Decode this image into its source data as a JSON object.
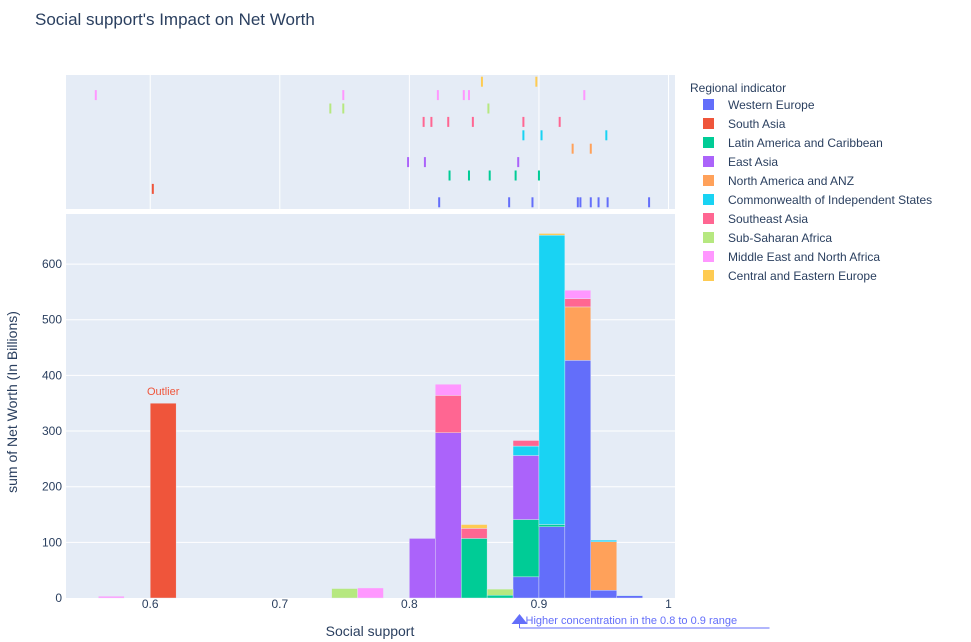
{
  "chart_data": {
    "type": "bar",
    "title": "Social support's Impact on Net Worth",
    "xlabel": "Social support",
    "ylabel": "sum of Net Worth (In Billions)",
    "xlim": [
      0.535,
      1.005
    ],
    "ylim": [
      0,
      690
    ],
    "barmode": "stack",
    "bin_width": 0.02,
    "x_ticks": [
      {
        "value": 0.6,
        "label": "0.6"
      },
      {
        "value": 0.7,
        "label": "0.7"
      },
      {
        "value": 0.8,
        "label": "0.8"
      },
      {
        "value": 0.9,
        "label": "0.9"
      },
      {
        "value": 1.0,
        "label": "1"
      }
    ],
    "y_ticks": [
      {
        "value": 0,
        "label": "0"
      },
      {
        "value": 100,
        "label": "100"
      },
      {
        "value": 200,
        "label": "200"
      },
      {
        "value": 300,
        "label": "300"
      },
      {
        "value": 400,
        "label": "400"
      },
      {
        "value": 500,
        "label": "500"
      },
      {
        "value": 600,
        "label": "600"
      }
    ],
    "legend_title": "Regional indicator",
    "legend_position": "right",
    "series": [
      {
        "name": "Western Europe",
        "color": "#636efa",
        "bars": [
          {
            "x": 0.89,
            "value": 38
          },
          {
            "x": 0.91,
            "value": 128
          },
          {
            "x": 0.93,
            "value": 427
          },
          {
            "x": 0.95,
            "value": 14
          },
          {
            "x": 0.97,
            "value": 4
          }
        ],
        "rug": [
          0.823,
          0.877,
          0.895,
          0.93,
          0.932,
          0.94,
          0.946,
          0.953,
          0.985
        ]
      },
      {
        "name": "South Asia",
        "color": "#ef553b",
        "bars": [
          {
            "x": 0.61,
            "value": 350
          }
        ],
        "rug": [
          0.602
        ]
      },
      {
        "name": "Latin America and Caribbean",
        "color": "#00cc96",
        "bars": [
          {
            "x": 0.85,
            "value": 107
          },
          {
            "x": 0.87,
            "value": 5
          },
          {
            "x": 0.89,
            "value": 103
          },
          {
            "x": 0.91,
            "value": 4
          }
        ],
        "rug": [
          0.831,
          0.846,
          0.862,
          0.882,
          0.9
        ]
      },
      {
        "name": "East Asia",
        "color": "#ab63fa",
        "bars": [
          {
            "x": 0.81,
            "value": 107
          },
          {
            "x": 0.83,
            "value": 297
          },
          {
            "x": 0.89,
            "value": 115
          }
        ],
        "rug": [
          0.799,
          0.812,
          0.884
        ]
      },
      {
        "name": "North America and ANZ",
        "color": "#ffa15a",
        "bars": [
          {
            "x": 0.93,
            "value": 96
          },
          {
            "x": 0.95,
            "value": 87
          }
        ],
        "rug": [
          0.926,
          0.94
        ]
      },
      {
        "name": "Commonwealth of Independent States",
        "color": "#19d3f3",
        "bars": [
          {
            "x": 0.89,
            "value": 17
          },
          {
            "x": 0.91,
            "value": 520
          },
          {
            "x": 0.95,
            "value": 3
          },
          {
            "x": 0.97,
            "value": 1
          }
        ],
        "rug": [
          0.888,
          0.902,
          0.952
        ]
      },
      {
        "name": "Southeast Asia",
        "color": "#ff6692",
        "bars": [
          {
            "x": 0.83,
            "value": 67
          },
          {
            "x": 0.85,
            "value": 18
          },
          {
            "x": 0.89,
            "value": 10
          },
          {
            "x": 0.93,
            "value": 15
          }
        ],
        "rug": [
          0.811,
          0.817,
          0.83,
          0.849,
          0.888,
          0.916
        ]
      },
      {
        "name": "Sub-Saharan Africa",
        "color": "#b6e880",
        "bars": [
          {
            "x": 0.75,
            "value": 17
          },
          {
            "x": 0.87,
            "value": 11
          }
        ],
        "rug": [
          0.739,
          0.749,
          0.861
        ]
      },
      {
        "name": "Middle East and North Africa",
        "color": "#ff97ff",
        "bars": [
          {
            "x": 0.57,
            "value": 3
          },
          {
            "x": 0.77,
            "value": 18
          },
          {
            "x": 0.83,
            "value": 20
          },
          {
            "x": 0.93,
            "value": 15
          }
        ],
        "rug": [
          0.558,
          0.749,
          0.822,
          0.842,
          0.846,
          0.935
        ]
      },
      {
        "name": "Central and Eastern Europe",
        "color": "#fecb52",
        "bars": [
          {
            "x": 0.85,
            "value": 7
          },
          {
            "x": 0.91,
            "value": 3
          }
        ],
        "rug": [
          0.856,
          0.898
        ]
      }
    ],
    "annotations": [
      {
        "text": "Outlier",
        "x": 0.61,
        "y": 372,
        "color": "#ef553b",
        "arrow": false
      },
      {
        "text": "Higher concentration in the 0.8 to 0.9 range",
        "x": 0.885,
        "color": "#636efa",
        "arrow": true
      }
    ]
  }
}
